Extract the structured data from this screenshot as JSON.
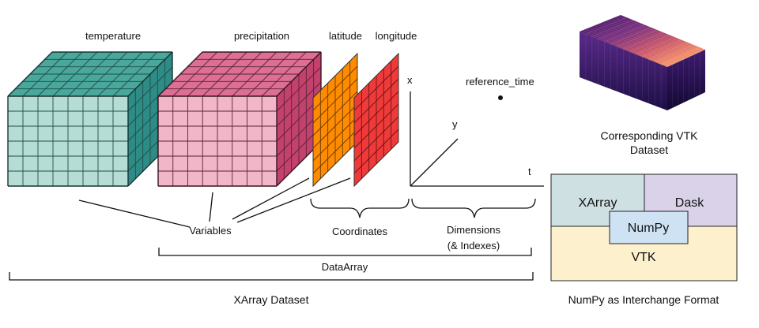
{
  "labels": {
    "temperature": "temperature",
    "precipitation": "precipitation",
    "latitude": "latitude",
    "longitude": "longitude",
    "axis_x": "x",
    "axis_y": "y",
    "axis_t": "t",
    "reference_time": "reference_time",
    "variables": "Variables",
    "coordinates": "Coordinates",
    "dimensions_line1": "Dimensions",
    "dimensions_line2": "(& Indexes)",
    "dataarray": "DataArray",
    "xarray_dataset": "XArray Dataset",
    "vtk_caption_line1": "Corresponding VTK",
    "vtk_caption_line2": "Dataset",
    "interchange_caption": "NumPy as Interchange Format"
  },
  "interchange": {
    "xarray": "XArray",
    "dask": "Dask",
    "numpy": "NumPy",
    "vtk": "VTK"
  },
  "colors": {
    "temperature_front": "#b6dcd6",
    "temperature_top": "#4aa79c",
    "temperature_side": "#2e8c86",
    "precipitation_front": "#f1b6c8",
    "precipitation_top": "#dc6f93",
    "precipitation_side": "#c2416d",
    "latitude": "#ff8c00",
    "longitude": "#f03a3a",
    "xarray_box": "#cfe0e3",
    "dask_box": "#d9d2e9",
    "numpy_box": "#cfe2f3",
    "vtk_box": "#fdf1cd"
  }
}
